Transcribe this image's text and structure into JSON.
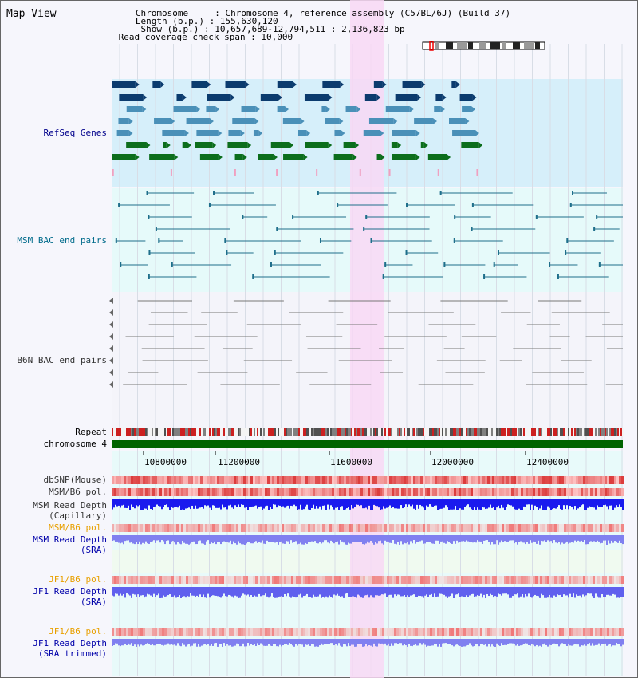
{
  "title": "Map View",
  "info": {
    "line1": "   Chromosome     : Chromosome 4, reference assembly (C57BL/6J) (Build 37)",
    "line2": "   Length (b.p.) : 155,630,120",
    "line3": "    Show (b.p.) : 10,657,689-12,794,511 : 2,136,823 bp",
    "line4": " Read coverage check span : 10,000"
  },
  "tracks": {
    "refseq": "RefSeq Genes",
    "msm_bac": "MSM BAC end pairs",
    "b6n_bac": "B6N BAC end pairs",
    "repeat": "Repeat",
    "chromosome": "chromosome 4",
    "dbsnp": "dbSNP(Mouse)",
    "msm_b6_pol_1": "MSM/B6 pol.",
    "msm_depth_cap_1": "MSM Read Depth",
    "msm_depth_cap_2": "(Capillary)",
    "msm_b6_pol_2": "MSM/B6 pol.",
    "msm_depth_sra_1": "MSM Read Depth",
    "msm_depth_sra_2": "(SRA)",
    "jf1_b6_pol_1": "JF1/B6 pol.",
    "jf1_depth_sra_1": "JF1 Read Depth",
    "jf1_depth_sra_2": "(SRA)",
    "jf1_b6_pol_2": "JF1/B6 pol.",
    "jf1_depth_trim_1": "JF1 Read Depth",
    "jf1_depth_trim_2": "(SRA trimmed)"
  },
  "axis": {
    "ticks": [
      "10800000",
      "11200000",
      "11600000",
      "12000000",
      "12400000"
    ]
  },
  "colors": {
    "refseq_bg": "#d6effa",
    "bac_bg": "#e6fafa",
    "highlight": "#f8d8f4",
    "gene_dark": "#0b3b6e",
    "gene_mid": "#4a90b8",
    "gene_green": "#0c6e1c",
    "chromosome": "#006400",
    "depth_blue": "#1a1aee",
    "depth_light": "#8080f0"
  }
}
